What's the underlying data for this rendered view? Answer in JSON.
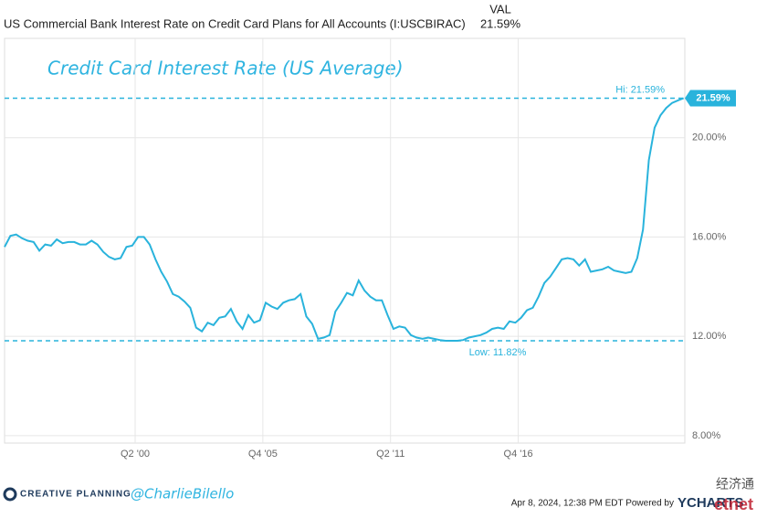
{
  "chart_data": {
    "type": "line",
    "header_col": "VAL",
    "header_value": "21.59%",
    "title": "Credit Card Interest Rate (US Average)",
    "x": [
      1994.75,
      1995.0,
      1995.25,
      1995.5,
      1995.75,
      1996.0,
      1996.25,
      1996.5,
      1996.75,
      1997.0,
      1997.25,
      1997.5,
      1997.75,
      1998.0,
      1998.25,
      1998.5,
      1998.75,
      1999.0,
      1999.25,
      1999.5,
      1999.75,
      2000.0,
      2000.25,
      2000.5,
      2000.75,
      2001.0,
      2001.25,
      2001.5,
      2001.75,
      2002.0,
      2002.25,
      2002.5,
      2002.75,
      2003.0,
      2003.25,
      2003.5,
      2003.75,
      2004.0,
      2004.25,
      2004.5,
      2004.75,
      2005.0,
      2005.25,
      2005.5,
      2005.75,
      2006.0,
      2006.25,
      2006.5,
      2006.75,
      2007.0,
      2007.25,
      2007.5,
      2007.75,
      2008.0,
      2008.25,
      2008.5,
      2008.75,
      2009.0,
      2009.25,
      2009.5,
      2009.75,
      2010.0,
      2010.25,
      2010.5,
      2010.75,
      2011.0,
      2011.25,
      2011.5,
      2011.75,
      2012.0,
      2012.25,
      2012.5,
      2012.75,
      2013.0,
      2013.25,
      2013.5,
      2013.75,
      2014.0,
      2014.25,
      2014.5,
      2014.75,
      2015.0,
      2015.25,
      2015.5,
      2015.75,
      2016.0,
      2016.25,
      2016.5,
      2016.75,
      2017.0,
      2017.25,
      2017.5,
      2017.75,
      2018.0,
      2018.25,
      2018.5,
      2018.75,
      2019.0,
      2019.25,
      2019.5,
      2019.75,
      2020.0,
      2020.25,
      2020.5,
      2020.75,
      2021.0,
      2021.25,
      2021.5,
      2021.75,
      2022.0,
      2022.25,
      2022.5,
      2022.75,
      2023.0,
      2023.25,
      2023.5,
      2023.75,
      2024.0
    ],
    "series": [
      {
        "name": "US Commercial Bank Interest Rate on Credit Card Plans for All Accounts (I:USCBIRAC)",
        "color": "#29b3dc",
        "values": [
          15.6,
          16.05,
          16.1,
          15.95,
          15.85,
          15.8,
          15.45,
          15.7,
          15.65,
          15.9,
          15.75,
          15.8,
          15.8,
          15.7,
          15.7,
          15.85,
          15.7,
          15.4,
          15.2,
          15.1,
          15.15,
          15.6,
          15.65,
          16.0,
          16.0,
          15.7,
          15.1,
          14.6,
          14.2,
          13.7,
          13.6,
          13.4,
          13.15,
          12.35,
          12.2,
          12.55,
          12.45,
          12.75,
          12.8,
          13.1,
          12.6,
          12.3,
          12.85,
          12.55,
          12.65,
          13.35,
          13.2,
          13.1,
          13.35,
          13.45,
          13.5,
          13.7,
          12.8,
          12.5,
          11.9,
          11.95,
          12.05,
          13.0,
          13.35,
          13.75,
          13.65,
          14.25,
          13.85,
          13.6,
          13.45,
          13.45,
          12.85,
          12.3,
          12.4,
          12.35,
          12.05,
          11.95,
          11.9,
          11.95,
          11.9,
          11.85,
          11.82,
          11.82,
          11.82,
          11.85,
          11.95,
          12.0,
          12.05,
          12.15,
          12.3,
          12.35,
          12.3,
          12.6,
          12.55,
          12.75,
          13.05,
          13.15,
          13.6,
          14.15,
          14.4,
          14.75,
          15.1,
          15.15,
          15.1,
          14.85,
          15.1,
          14.6,
          14.65,
          14.7,
          14.8,
          14.65,
          14.6,
          14.55,
          14.6,
          15.15,
          16.3,
          19.1,
          20.4,
          20.9,
          21.2,
          21.4,
          21.5,
          21.59
        ]
      }
    ],
    "last_label": "21.59%",
    "hi": {
      "value": 21.59,
      "label": "Hi: 21.59%"
    },
    "low": {
      "value": 11.82,
      "label": "Low: 11.82%"
    },
    "xlim": [
      1994.75,
      2024.05
    ],
    "xticks": [
      {
        "value": 2000.375,
        "label": "Q2 '00"
      },
      {
        "value": 2005.875,
        "label": "Q4 '05"
      },
      {
        "value": 2011.375,
        "label": "Q2 '11"
      },
      {
        "value": 2016.875,
        "label": "Q4 '16"
      }
    ],
    "ylim": [
      7.7,
      24
    ],
    "yticks": [
      {
        "value": 8,
        "label": "8.00%"
      },
      {
        "value": 12,
        "label": "12.00%"
      },
      {
        "value": 16,
        "label": "16.00%"
      },
      {
        "value": 20,
        "label": "20.00%"
      }
    ],
    "grid": true,
    "footer": {
      "brand": "CREATIVE PLANNING",
      "handle": "@CharlieBilello",
      "timestamp": "Apr 8, 2024, 12:38 PM EDT Powered by",
      "provider": "YCHARTS",
      "watermark_cn": "经济通",
      "watermark": "etnet"
    }
  }
}
